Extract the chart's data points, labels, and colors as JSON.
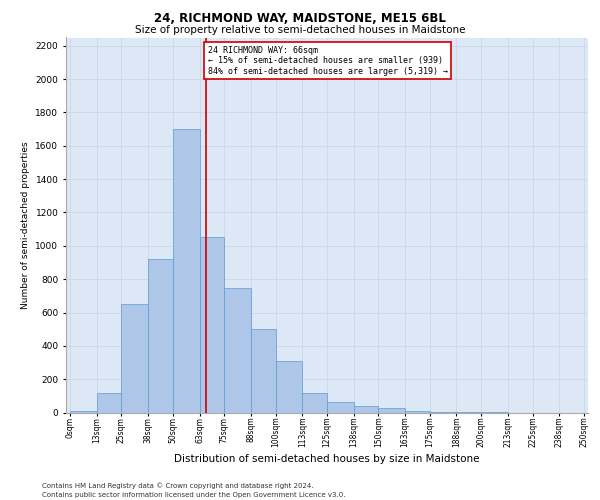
{
  "title1": "24, RICHMOND WAY, MAIDSTONE, ME15 6BL",
  "title2": "Size of property relative to semi-detached houses in Maidstone",
  "xlabel": "Distribution of semi-detached houses by size in Maidstone",
  "ylabel": "Number of semi-detached properties",
  "footnote1": "Contains HM Land Registry data © Crown copyright and database right 2024.",
  "footnote2": "Contains public sector information licensed under the Open Government Licence v3.0.",
  "bar_color": "#aec6e8",
  "bar_edge_color": "#5b9bd5",
  "annotation_line1": "24 RICHMOND WAY: 66sqm",
  "annotation_line2": "← 15% of semi-detached houses are smaller (939)",
  "annotation_line3": "84% of semi-detached houses are larger (5,319) →",
  "property_size": 66,
  "vline_color": "#cc0000",
  "annotation_box_color": "#ffffff",
  "annotation_box_edge": "#cc0000",
  "bin_edges": [
    0,
    13,
    25,
    38,
    50,
    63,
    75,
    88,
    100,
    113,
    125,
    138,
    150,
    163,
    175,
    188,
    200,
    213,
    225,
    238,
    250
  ],
  "bin_labels": [
    "0sqm",
    "13sqm",
    "25sqm",
    "38sqm",
    "50sqm",
    "63sqm",
    "75sqm",
    "88sqm",
    "100sqm",
    "113sqm",
    "125sqm",
    "138sqm",
    "150sqm",
    "163sqm",
    "175sqm",
    "188sqm",
    "200sqm",
    "213sqm",
    "225sqm",
    "238sqm",
    "250sqm"
  ],
  "bar_heights": [
    10,
    120,
    650,
    920,
    1700,
    1050,
    750,
    500,
    310,
    120,
    65,
    40,
    30,
    10,
    5,
    5,
    3,
    0,
    0,
    0
  ],
  "ylim": [
    0,
    2250
  ],
  "yticks": [
    0,
    200,
    400,
    600,
    800,
    1000,
    1200,
    1400,
    1600,
    1800,
    2000,
    2200
  ],
  "grid_color": "#d0d8e8",
  "background_color": "#dce8f5"
}
